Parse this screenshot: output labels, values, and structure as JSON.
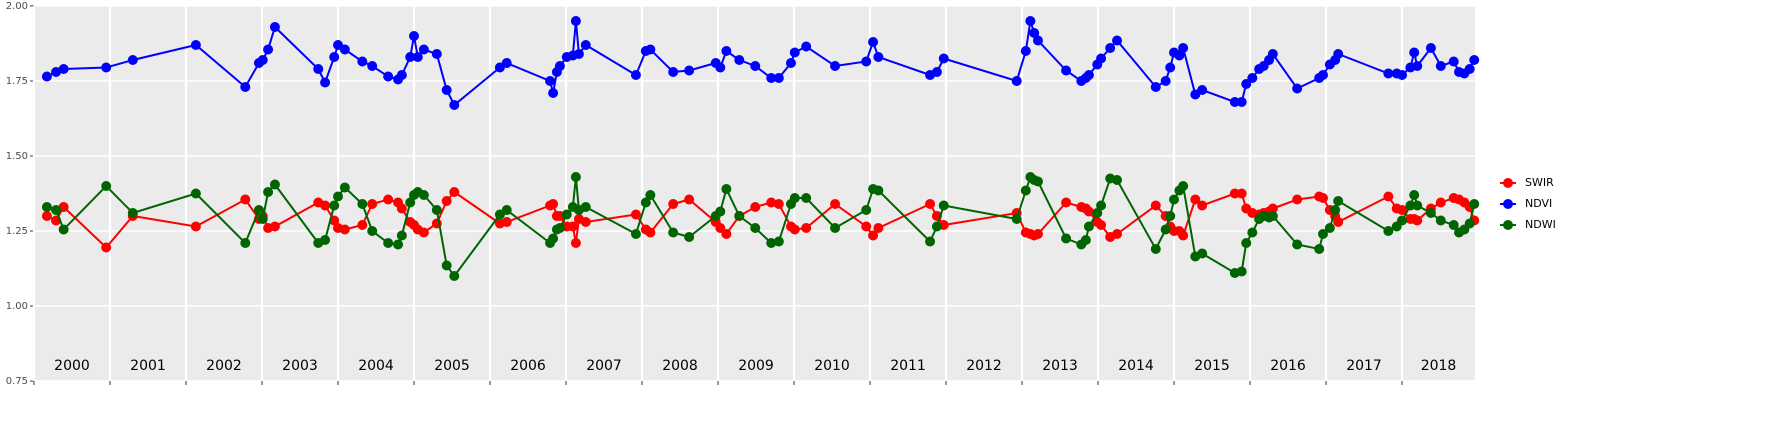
{
  "chart_data": {
    "type": "line",
    "x": [
      2000.17,
      2000.29,
      2000.39,
      2000.95,
      2001.3,
      2002.13,
      2002.78,
      2002.96,
      2003.01,
      2003.08,
      2003.17,
      2003.74,
      2003.83,
      2003.95,
      2004.0,
      2004.09,
      2004.32,
      2004.45,
      2004.66,
      2004.79,
      2004.84,
      2004.95,
      2005.0,
      2005.05,
      2005.13,
      2005.3,
      2005.43,
      2005.53,
      2006.13,
      2006.22,
      2006.79,
      2006.83,
      2006.88,
      2006.92,
      2007.01,
      2007.09,
      2007.13,
      2007.17,
      2007.26,
      2007.92,
      2008.05,
      2008.11,
      2008.41,
      2008.62,
      2008.97,
      2009.03,
      2009.11,
      2009.28,
      2009.49,
      2009.7,
      2009.8,
      2009.96,
      2010.01,
      2010.16,
      2010.54,
      2010.95,
      2011.04,
      2011.11,
      2011.79,
      2011.88,
      2011.97,
      2012.93,
      2013.05,
      2013.11,
      2013.16,
      2013.21,
      2013.58,
      2013.78,
      2013.84,
      2013.88,
      2013.99,
      2014.04,
      2014.16,
      2014.25,
      2014.76,
      2014.89,
      2014.95,
      2015.0,
      2015.07,
      2015.12,
      2015.28,
      2015.37,
      2015.8,
      2015.89,
      2015.95,
      2016.03,
      2016.12,
      2016.18,
      2016.25,
      2016.3,
      2016.62,
      2016.91,
      2016.96,
      2017.05,
      2017.12,
      2017.16,
      2017.82,
      2017.93,
      2018.0,
      2018.11,
      2018.16,
      2018.2,
      2018.38,
      2018.51,
      2018.68,
      2018.75,
      2018.82,
      2018.89,
      2018.95
    ],
    "series": [
      {
        "name": "SWIR",
        "color": "#ff0000",
        "values": [
          1.3,
          1.285,
          1.33,
          1.195,
          1.3,
          1.265,
          1.355,
          1.29,
          1.3,
          1.26,
          1.265,
          1.345,
          1.335,
          1.285,
          1.26,
          1.255,
          1.27,
          1.34,
          1.355,
          1.345,
          1.325,
          1.28,
          1.27,
          1.255,
          1.245,
          1.275,
          1.35,
          1.38,
          1.275,
          1.28,
          1.335,
          1.34,
          1.3,
          1.3,
          1.265,
          1.265,
          1.21,
          1.29,
          1.28,
          1.305,
          1.255,
          1.245,
          1.34,
          1.355,
          1.28,
          1.26,
          1.24,
          1.3,
          1.33,
          1.345,
          1.34,
          1.265,
          1.255,
          1.26,
          1.34,
          1.265,
          1.235,
          1.26,
          1.34,
          1.3,
          1.27,
          1.31,
          1.245,
          1.24,
          1.235,
          1.24,
          1.345,
          1.33,
          1.325,
          1.315,
          1.28,
          1.27,
          1.23,
          1.24,
          1.335,
          1.3,
          1.265,
          1.25,
          1.25,
          1.235,
          1.355,
          1.335,
          1.375,
          1.375,
          1.325,
          1.31,
          1.305,
          1.31,
          1.315,
          1.325,
          1.355,
          1.365,
          1.36,
          1.32,
          1.3,
          1.28,
          1.365,
          1.325,
          1.32,
          1.29,
          1.29,
          1.285,
          1.325,
          1.345,
          1.36,
          1.355,
          1.345,
          1.33,
          1.285
        ]
      },
      {
        "name": "NDVI",
        "color": "#0000ff",
        "values": [
          1.765,
          1.78,
          1.79,
          1.795,
          1.82,
          1.87,
          1.73,
          1.81,
          1.82,
          1.855,
          1.93,
          1.79,
          1.745,
          1.83,
          1.87,
          1.855,
          1.815,
          1.8,
          1.765,
          1.755,
          1.77,
          1.83,
          1.9,
          1.83,
          1.855,
          1.84,
          1.72,
          1.67,
          1.795,
          1.81,
          1.75,
          1.71,
          1.78,
          1.8,
          1.83,
          1.835,
          1.95,
          1.84,
          1.87,
          1.77,
          1.85,
          1.855,
          1.78,
          1.785,
          1.81,
          1.795,
          1.85,
          1.82,
          1.8,
          1.76,
          1.76,
          1.81,
          1.845,
          1.865,
          1.8,
          1.815,
          1.88,
          1.83,
          1.77,
          1.78,
          1.825,
          1.75,
          1.85,
          1.95,
          1.91,
          1.885,
          1.785,
          1.75,
          1.76,
          1.77,
          1.805,
          1.825,
          1.86,
          1.885,
          1.73,
          1.75,
          1.795,
          1.845,
          1.835,
          1.86,
          1.705,
          1.72,
          1.68,
          1.68,
          1.74,
          1.76,
          1.79,
          1.8,
          1.82,
          1.84,
          1.725,
          1.76,
          1.77,
          1.805,
          1.82,
          1.84,
          1.775,
          1.775,
          1.77,
          1.795,
          1.845,
          1.8,
          1.86,
          1.8,
          1.815,
          1.78,
          1.775,
          1.79,
          1.82
        ]
      },
      {
        "name": "NDWI",
        "color": "#006400",
        "values": [
          1.33,
          1.32,
          1.255,
          1.4,
          1.31,
          1.375,
          1.21,
          1.32,
          1.29,
          1.38,
          1.405,
          1.21,
          1.22,
          1.335,
          1.365,
          1.395,
          1.34,
          1.25,
          1.21,
          1.205,
          1.235,
          1.345,
          1.37,
          1.38,
          1.37,
          1.32,
          1.135,
          1.1,
          1.305,
          1.32,
          1.21,
          1.225,
          1.255,
          1.26,
          1.305,
          1.33,
          1.43,
          1.32,
          1.33,
          1.24,
          1.345,
          1.37,
          1.245,
          1.23,
          1.3,
          1.315,
          1.39,
          1.3,
          1.26,
          1.21,
          1.215,
          1.34,
          1.36,
          1.36,
          1.26,
          1.32,
          1.39,
          1.385,
          1.215,
          1.265,
          1.335,
          1.29,
          1.385,
          1.43,
          1.42,
          1.415,
          1.225,
          1.205,
          1.22,
          1.265,
          1.31,
          1.335,
          1.425,
          1.42,
          1.19,
          1.255,
          1.3,
          1.355,
          1.385,
          1.4,
          1.165,
          1.175,
          1.11,
          1.115,
          1.21,
          1.245,
          1.29,
          1.3,
          1.295,
          1.3,
          1.205,
          1.19,
          1.24,
          1.26,
          1.32,
          1.35,
          1.25,
          1.265,
          1.285,
          1.335,
          1.37,
          1.335,
          1.31,
          1.285,
          1.27,
          1.245,
          1.255,
          1.275,
          1.34
        ]
      }
    ],
    "xlim": [
      2000,
      2018.96
    ],
    "xticks": [
      {
        "value": 2000,
        "label": "2000"
      },
      {
        "value": 2001,
        "label": "2001"
      },
      {
        "value": 2002,
        "label": "2002"
      },
      {
        "value": 2003,
        "label": "2003"
      },
      {
        "value": 2004,
        "label": "2004"
      },
      {
        "value": 2005,
        "label": "2005"
      },
      {
        "value": 2006,
        "label": "2006"
      },
      {
        "value": 2007,
        "label": "2007"
      },
      {
        "value": 2008,
        "label": "2008"
      },
      {
        "value": 2009,
        "label": "2009"
      },
      {
        "value": 2010,
        "label": "2010"
      },
      {
        "value": 2011,
        "label": "2011"
      },
      {
        "value": 2012,
        "label": "2012"
      },
      {
        "value": 2013,
        "label": "2013"
      },
      {
        "value": 2014,
        "label": "2014"
      },
      {
        "value": 2015,
        "label": "2015"
      },
      {
        "value": 2016,
        "label": "2016"
      },
      {
        "value": 2017,
        "label": "2017"
      },
      {
        "value": 2018,
        "label": "2018"
      }
    ],
    "ylim": [
      0.75,
      2.0
    ],
    "yticks": [
      {
        "value": 0.75,
        "label": "0.75"
      },
      {
        "value": 1.0,
        "label": "1.00"
      },
      {
        "value": 1.25,
        "label": "1.25"
      },
      {
        "value": 1.5,
        "label": "1.50"
      },
      {
        "value": 1.75,
        "label": "1.75"
      },
      {
        "value": 2.0,
        "label": "2.00"
      }
    ],
    "grid": true,
    "legend": "right"
  }
}
